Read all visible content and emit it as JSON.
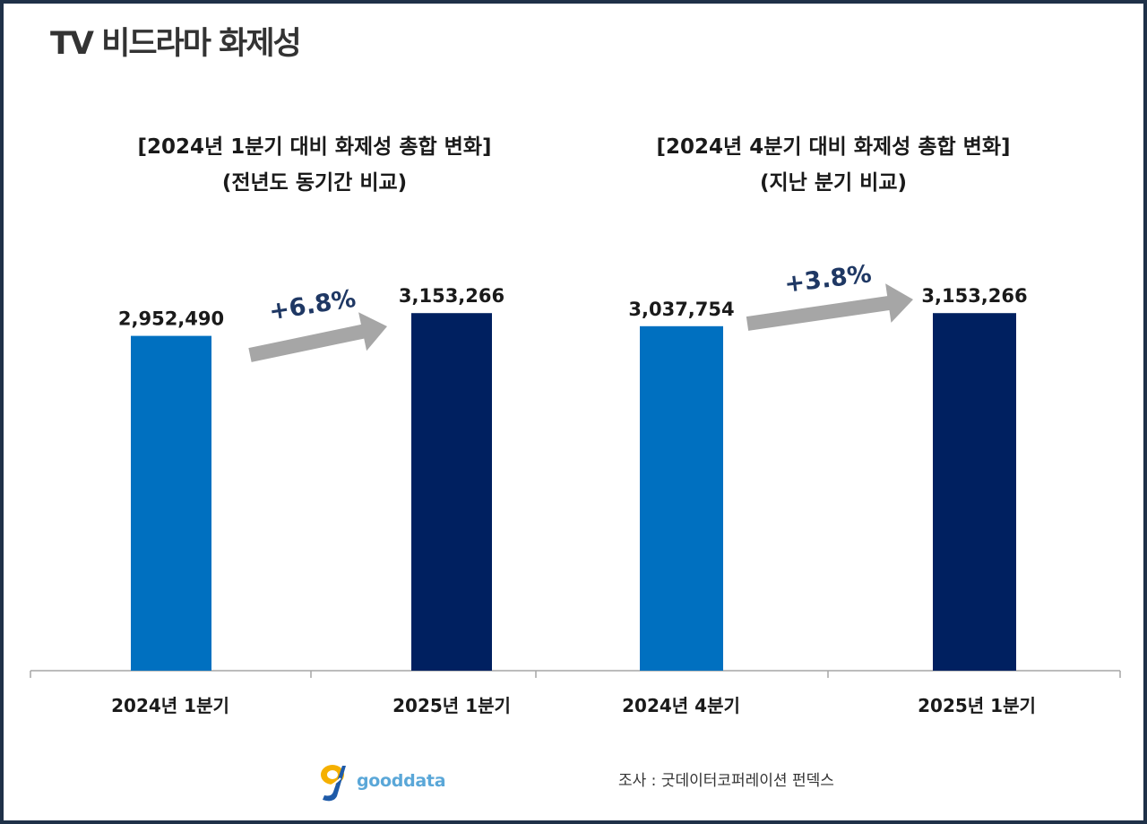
{
  "page_title": "TV 비드라마 화제성",
  "colors": {
    "bar_previous": "#0070c0",
    "bar_current": "#002060",
    "arrow": "#a6a6a6",
    "change_label": "#1f3864",
    "axis": "#a6a6a6",
    "frame": "#1f3148"
  },
  "panels": [
    {
      "heading_line1": "[2024년 1분기 대비 화제성 총합 변화]",
      "heading_line2": "(전년도 동기간 비교)",
      "change_label": "+6.8%"
    },
    {
      "heading_line1": "[2024년 4분기 대비 화제성 총합 변화]",
      "heading_line2": "(지난 분기 비교)",
      "change_label": "+3.8%"
    }
  ],
  "chart_data": [
    {
      "type": "bar",
      "categories": [
        "2024년 1분기",
        "2025년 1분기"
      ],
      "values": [
        2952490,
        3153266
      ],
      "value_labels": [
        "2,952,490",
        "3,153,266"
      ],
      "ylim": [
        0,
        3400000
      ],
      "grid": false,
      "legend": "none"
    },
    {
      "type": "bar",
      "categories": [
        "2024년 4분기",
        "2025년 1분기"
      ],
      "values": [
        3037754,
        3153266
      ],
      "value_labels": [
        "3,037,754",
        "3,153,266"
      ],
      "ylim": [
        0,
        3400000
      ],
      "grid": false,
      "legend": "none"
    }
  ],
  "footer": {
    "logo_text": "gooddata",
    "logo_icon": "gooddata-g-logo-icon",
    "source": "조사 : 굿데이터코퍼레이션 펀덱스"
  }
}
